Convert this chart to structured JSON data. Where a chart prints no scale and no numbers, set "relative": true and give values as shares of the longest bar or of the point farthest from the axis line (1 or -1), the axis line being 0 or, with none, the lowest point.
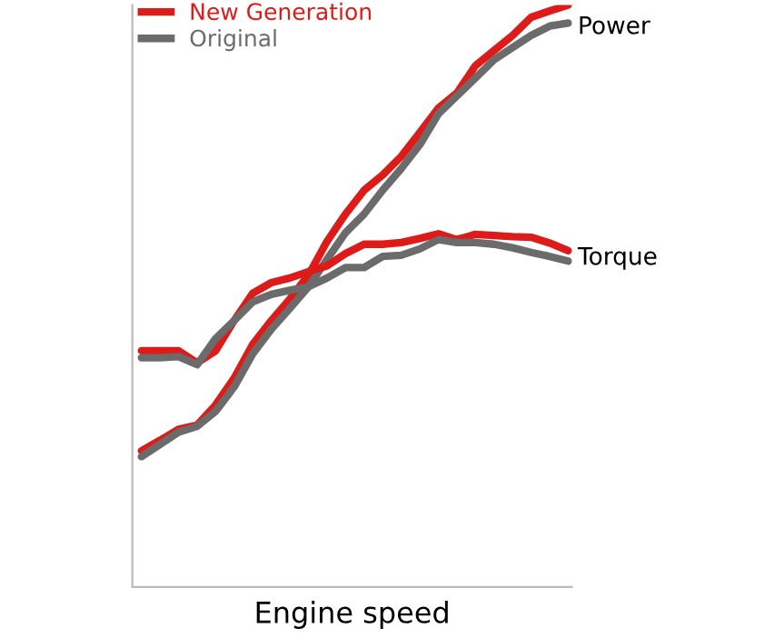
{
  "chart_data": {
    "type": "line",
    "relative": true,
    "xlabel": "Engine speed",
    "categories": [
      null,
      null,
      null,
      null,
      null,
      null,
      null,
      null,
      null,
      null,
      null,
      null,
      null,
      null,
      null,
      null,
      null,
      null,
      null,
      null,
      null,
      null,
      null,
      null
    ],
    "series": [
      {
        "name": "New Generation",
        "color": "#dd1c1a",
        "values": [
          0.234,
          0.252,
          0.271,
          0.278,
          0.313,
          0.359,
          0.417,
          0.458,
          0.495,
          0.536,
          0.594,
          0.641,
          0.682,
          0.708,
          0.74,
          0.781,
          0.823,
          0.849,
          0.896,
          0.922,
          0.948,
          0.979,
          0.99,
          1
        ]
      },
      {
        "name": "Original",
        "color": "#6b6b6b",
        "values": [
          0.224,
          0.245,
          0.266,
          0.276,
          0.302,
          0.344,
          0.401,
          0.443,
          0.479,
          0.516,
          0.563,
          0.609,
          0.641,
          0.682,
          0.719,
          0.76,
          0.813,
          0.844,
          0.875,
          0.906,
          0.927,
          0.948,
          0.964,
          0.969
        ]
      },
      {
        "color": "#dd1c1a",
        "values": [
          0.406,
          0.406,
          0.406,
          0.385,
          0.406,
          0.458,
          0.505,
          0.523,
          0.531,
          0.542,
          0.552,
          0.573,
          0.589,
          0.589,
          0.592,
          0.599,
          0.607,
          0.597,
          0.606,
          0.604,
          0.602,
          0.601,
          0.591,
          0.578
        ]
      },
      {
        "color": "#6b6b6b",
        "values": [
          0.394,
          0.394,
          0.396,
          0.382,
          0.427,
          0.458,
          0.49,
          0.503,
          0.51,
          0.516,
          0.531,
          0.549,
          0.549,
          0.568,
          0.57,
          0.581,
          0.597,
          0.592,
          0.592,
          0.589,
          0.583,
          0.575,
          0.568,
          0.56
        ]
      }
    ],
    "annotations": [
      "Power",
      "Torque"
    ],
    "legend": "top left",
    "grid": false,
    "marker": "none",
    "line_style": "solid"
  }
}
